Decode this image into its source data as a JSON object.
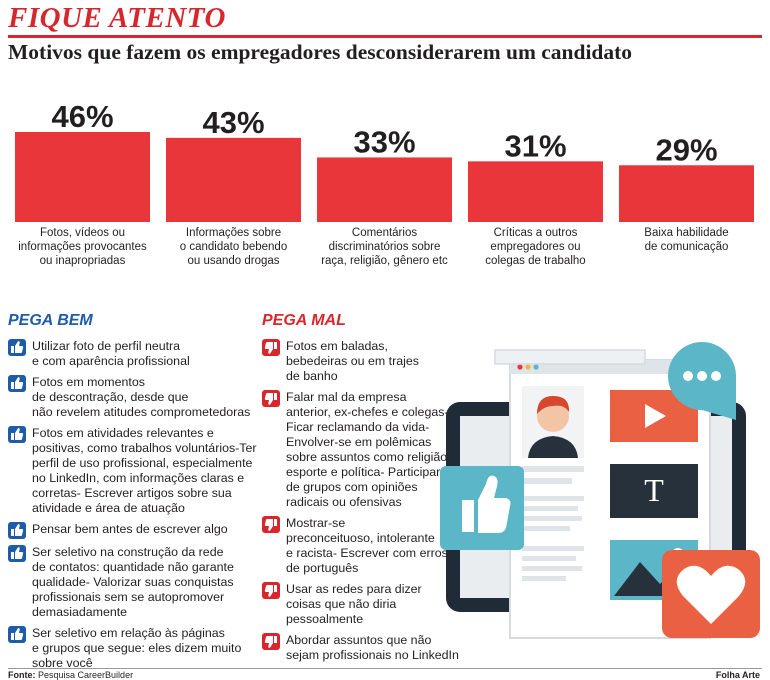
{
  "header": {
    "kicker": "FIQUE ATENTO",
    "headline": "Motivos que fazem os empregadores desconsiderarem um candidato"
  },
  "chart_data": {
    "type": "bar",
    "title": "Motivos que fazem os empregadores desconsiderarem um candidato",
    "unit": "%",
    "bar_color": "#e8363b",
    "ylim": [
      0,
      46
    ],
    "categories": [
      [
        "Fotos, vídeos ou",
        "informações provocantes",
        "ou inapropriadas"
      ],
      [
        "Informações sobre",
        "o candidato bebendo",
        "ou usando drogas"
      ],
      [
        "Comentários",
        "discriminatórios sobre",
        "raça, religião, gênero etc"
      ],
      [
        "Críticas a outros",
        "empregadores ou",
        "colegas de trabalho"
      ],
      [
        "Baixa habilidade",
        "de comunicação"
      ]
    ],
    "values": [
      46,
      43,
      33,
      31,
      29
    ],
    "value_labels": [
      "46%",
      "43%",
      "33%",
      "31%",
      "29%"
    ]
  },
  "pega_bem": {
    "title": "PEGA BEM",
    "icon": "thumbs-up-icon",
    "icon_color": "#1e5ba8",
    "items": [
      [
        "Utilizar foto de perfil neutra",
        "e com aparência profissional"
      ],
      [
        "Fotos em momentos",
        "de descontração, desde que",
        "não revelem atitudes comprometedoras"
      ],
      [
        "Fotos em atividades relevantes e",
        "positivas, como trabalhos voluntários-Ter",
        "perfil de uso profissional, especialmente",
        "no LinkedIn, com informações claras e",
        "corretas- Escrever artigos sobre sua",
        "atividade e área de atuação"
      ],
      [
        "Pensar bem antes de escrever algo"
      ],
      [
        "Ser seletivo na construção da rede",
        "de contatos: quantidade não garante",
        "qualidade- Valorizar suas conquistas",
        "profissionais sem se autopromover",
        "demasiadamente"
      ],
      [
        "Ser seletivo em relação às páginas",
        "e grupos que segue: eles dizem muito",
        "sobre você"
      ]
    ]
  },
  "pega_mal": {
    "title": "PEGA MAL",
    "icon": "thumbs-down-icon",
    "icon_color": "#d7272d",
    "items": [
      [
        "Fotos em baladas,",
        "bebedeiras ou em trajes",
        "de banho"
      ],
      [
        "Falar mal da empresa",
        "anterior, ex-chefes e colegas-",
        "Ficar reclamando da vida-",
        "Envolver-se em polêmicas",
        "sobre assuntos como religião,",
        "esporte e política- Participar",
        "de grupos com opiniões",
        "radicais ou ofensivas"
      ],
      [
        "Mostrar-se",
        "preconceituoso, intolerante",
        "e racista- Escrever com erros",
        "de português"
      ],
      [
        "Usar as redes para dizer",
        "coisas que não diria",
        "pessoalmente"
      ],
      [
        "Abordar assuntos que não",
        "sejam profissionais no LinkedIn"
      ]
    ]
  },
  "illustration": {
    "icons": [
      "tablet-icon",
      "profile-avatar-icon",
      "video-play-icon",
      "text-t-icon",
      "image-icon",
      "thumbs-up-icon",
      "chat-bubble-icon",
      "heart-icon"
    ],
    "text_glyph": "T"
  },
  "footer": {
    "source_label": "Fonte:",
    "source": "Pesquisa CareerBuilder",
    "credit": "Folha Arte"
  }
}
